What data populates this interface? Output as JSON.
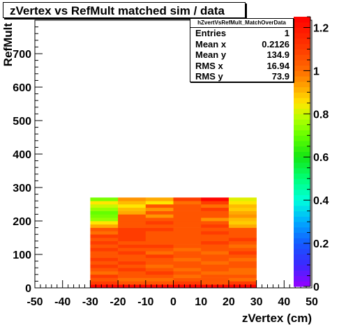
{
  "title": "zVertex vs RefMult matched sim / data",
  "stats": {
    "name": "hZvertVsRefMult_MatchOverData",
    "rows": [
      {
        "label": "Entries",
        "value": "1"
      },
      {
        "label": "Mean x",
        "value": "0.2126"
      },
      {
        "label": "Mean y",
        "value": "134.9"
      },
      {
        "label": "RMS x",
        "value": "16.94"
      },
      {
        "label": "RMS y",
        "value": "73.9"
      }
    ]
  },
  "chart_data": {
    "type": "heatmap",
    "title": "zVertex vs RefMult matched sim / data",
    "xlabel": "zVertex (cm)",
    "ylabel": "RefMult",
    "xlim": [
      -50,
      50
    ],
    "ylim": [
      0,
      800
    ],
    "x_ticks": [
      -50,
      -40,
      -30,
      -20,
      -10,
      0,
      10,
      20,
      30,
      40,
      50
    ],
    "y_ticks": [
      0,
      100,
      200,
      300,
      400,
      500,
      600,
      700
    ],
    "z_ticks": [
      0,
      0.2,
      0.4,
      0.6,
      0.8,
      1,
      1.2
    ],
    "zlim": [
      0,
      1.25
    ],
    "x_bin_edges": [
      -30,
      -20,
      -10,
      0,
      10,
      20,
      30
    ],
    "y_bin_edges": [
      0,
      10,
      20,
      30,
      40,
      50,
      60,
      70,
      80,
      90,
      100,
      110,
      120,
      130,
      140,
      150,
      160,
      170,
      180,
      190,
      200,
      210,
      220,
      230,
      240,
      250,
      260,
      270
    ],
    "values": [
      [
        1.24,
        1.24,
        1.24,
        1.24,
        1.24,
        1.24
      ],
      [
        1.1,
        1.05,
        1.05,
        1.1,
        1.05,
        1.1
      ],
      [
        1.05,
        1.0,
        1.0,
        1.05,
        1.05,
        1.0
      ],
      [
        1.1,
        1.05,
        1.05,
        1.0,
        1.05,
        1.05
      ],
      [
        1.0,
        1.05,
        1.1,
        1.05,
        1.0,
        1.0
      ],
      [
        1.05,
        1.1,
        1.05,
        1.0,
        1.05,
        1.0
      ],
      [
        1.1,
        1.05,
        1.0,
        1.05,
        1.05,
        1.05
      ],
      [
        1.05,
        1.1,
        1.05,
        1.05,
        1.0,
        1.05
      ],
      [
        1.1,
        1.05,
        1.05,
        1.0,
        1.05,
        1.0
      ],
      [
        1.05,
        1.05,
        1.1,
        1.05,
        1.05,
        1.05
      ],
      [
        1.05,
        1.1,
        1.0,
        1.05,
        1.0,
        1.1
      ],
      [
        1.1,
        1.05,
        1.05,
        1.0,
        1.05,
        1.05
      ],
      [
        1.05,
        1.1,
        1.1,
        1.05,
        1.05,
        1.0
      ],
      [
        1.1,
        1.05,
        1.05,
        1.05,
        1.1,
        1.05
      ],
      [
        1.05,
        1.1,
        1.05,
        1.05,
        1.05,
        1.1
      ],
      [
        1.1,
        1.1,
        1.05,
        1.05,
        1.05,
        1.05
      ],
      [
        1.0,
        1.1,
        1.05,
        1.05,
        1.1,
        1.05
      ],
      [
        1.05,
        1.1,
        1.1,
        1.05,
        1.05,
        1.05
      ],
      [
        0.92,
        1.05,
        1.05,
        1.05,
        1.1,
        0.92
      ],
      [
        0.85,
        1.05,
        1.1,
        1.05,
        1.05,
        0.88
      ],
      [
        0.75,
        1.05,
        1.05,
        1.05,
        0.95,
        0.9
      ],
      [
        0.72,
        1.05,
        0.95,
        1.05,
        1.05,
        0.95
      ],
      [
        0.7,
        0.92,
        1.05,
        1.05,
        1.05,
        0.92
      ],
      [
        0.75,
        0.9,
        0.95,
        1.05,
        1.1,
        0.88
      ],
      [
        0.8,
        0.85,
        1.05,
        1.05,
        1.0,
        0.9
      ],
      [
        0.85,
        0.9,
        0.85,
        1.0,
        1.1,
        0.85
      ],
      [
        0.72,
        0.95,
        0.92,
        1.1,
        1.24,
        0.82
      ]
    ]
  }
}
